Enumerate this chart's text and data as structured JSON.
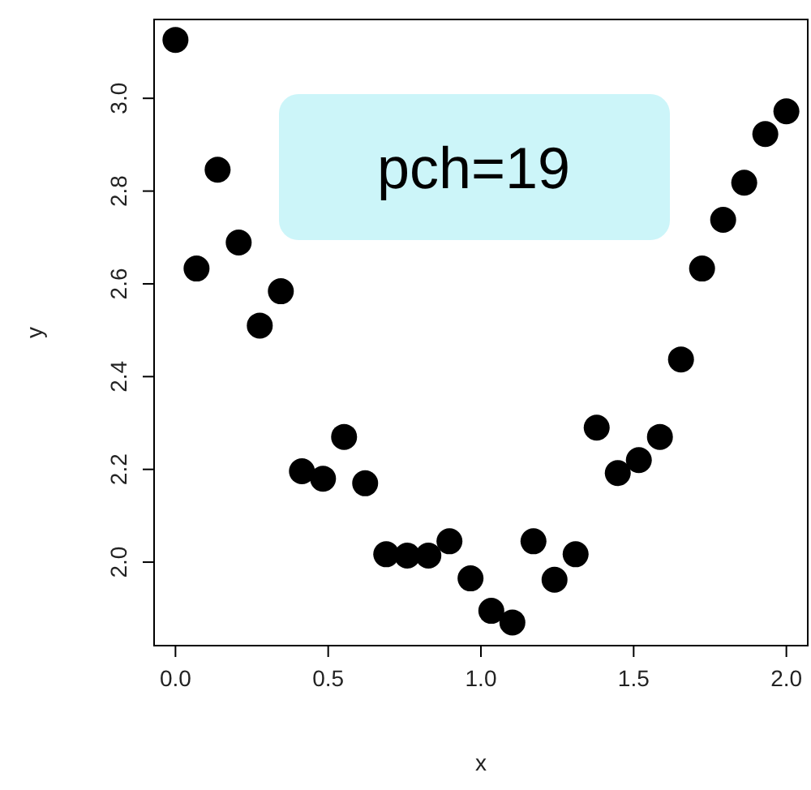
{
  "chart_data": {
    "type": "scatter",
    "xlabel": "x",
    "ylabel": "y",
    "annotations": [
      "pch=19"
    ],
    "x": [
      0,
      0.069,
      0.138,
      0.207,
      0.276,
      0.345,
      0.414,
      0.483,
      0.552,
      0.621,
      0.69,
      0.759,
      0.828,
      0.897,
      0.966,
      1.034,
      1.103,
      1.172,
      1.241,
      1.31,
      1.379,
      1.448,
      1.517,
      1.586,
      1.655,
      1.724,
      1.793,
      1.862,
      1.931,
      2
    ],
    "series": [
      {
        "color": "#000000",
        "values": [
          3.126,
          2.633,
          2.846,
          2.689,
          2.51,
          2.584,
          2.196,
          2.18,
          2.27,
          2.17,
          2.017,
          2.014,
          2.014,
          2.045,
          1.965,
          1.895,
          1.87,
          2.045,
          1.962,
          2.017,
          2.29,
          2.192,
          2.22,
          2.27,
          2.437,
          2.633,
          2.738,
          2.818,
          2.923,
          2.972
        ]
      }
    ],
    "marker": "circle",
    "xlim": [
      -0.07,
      2.07
    ],
    "ylim": [
      1.82,
      3.17
    ],
    "xticks": [
      {
        "value": 0,
        "label": "0.0"
      },
      {
        "value": 0.5,
        "label": "0.5"
      },
      {
        "value": 1,
        "label": "1.0"
      },
      {
        "value": 1.5,
        "label": "1.5"
      },
      {
        "value": 2,
        "label": "2.0"
      }
    ],
    "yticks": [
      {
        "value": 2,
        "label": "2.0"
      },
      {
        "value": 2.2,
        "label": "2.2"
      },
      {
        "value": 2.4,
        "label": "2.4"
      },
      {
        "value": 2.6,
        "label": "2.6"
      },
      {
        "value": 2.8,
        "label": "2.8"
      },
      {
        "value": 3,
        "label": "3.0"
      }
    ]
  }
}
